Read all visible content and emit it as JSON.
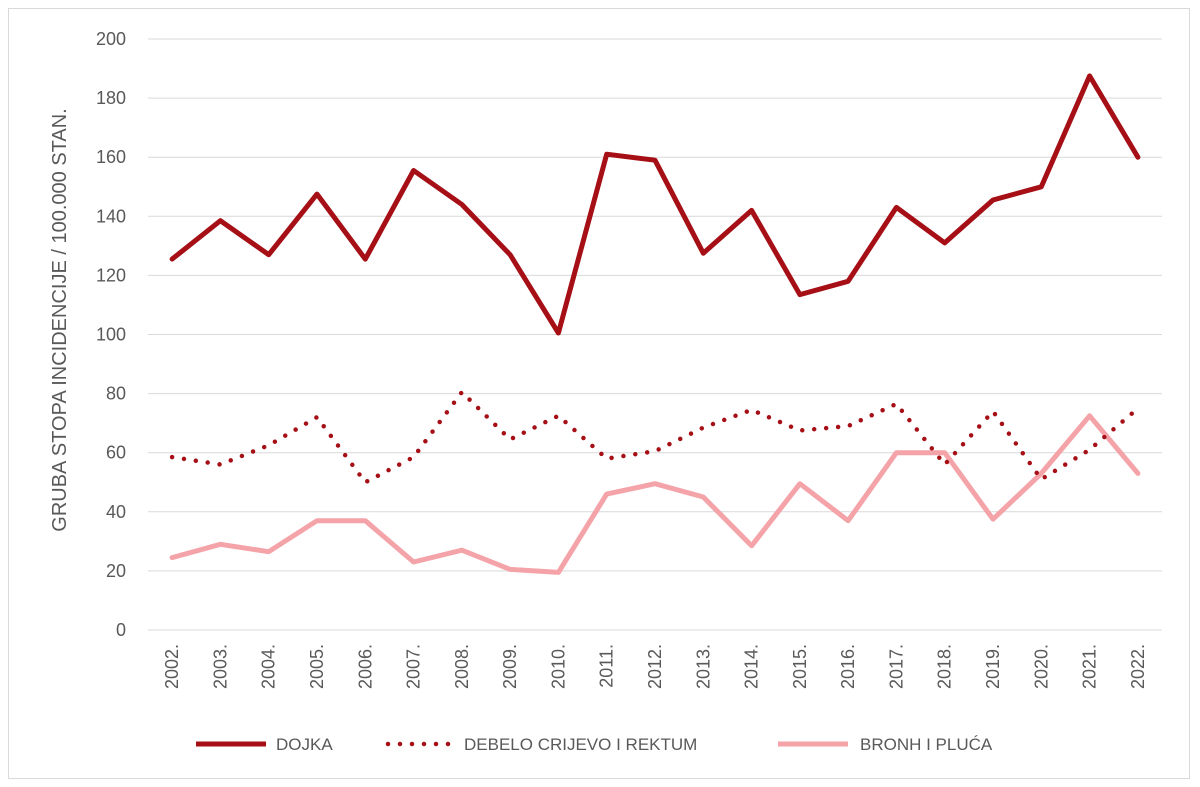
{
  "chart_data": {
    "type": "line",
    "ylabel": "GRUBA STOPA INCIDENCIJE / 100.000 STAN.",
    "xlabel": "",
    "ylim": [
      0,
      200
    ],
    "yticks": [
      "0",
      "20",
      "40",
      "60",
      "80",
      "100",
      "120",
      "140",
      "160",
      "180",
      "200"
    ],
    "grid": true,
    "legend_position": "bottom",
    "categories": [
      "2002.",
      "2003.",
      "2004.",
      "2005.",
      "2006.",
      "2007.",
      "2008.",
      "2009.",
      "2010.",
      "2011.",
      "2012.",
      "2013.",
      "2014.",
      "2015.",
      "2016.",
      "2017.",
      "2018.",
      "2019.",
      "2020.",
      "2021.",
      "2022."
    ],
    "series": [
      {
        "name": "DOJKA",
        "color": "#a50f15",
        "style": "solid",
        "values": [
          125.5,
          138.5,
          127,
          147.5,
          125.5,
          155.5,
          144,
          127,
          100.5,
          161,
          159,
          127.5,
          142,
          113.5,
          118,
          143,
          131,
          145.5,
          150,
          187.5,
          160
        ]
      },
      {
        "name": "DEBELO CRIJEVO I REKTUM",
        "color": "#a50f15",
        "style": "dotted",
        "values": [
          58.5,
          56,
          62.5,
          72,
          50,
          58.5,
          80.5,
          64.5,
          72.5,
          58,
          60.5,
          68.5,
          74.5,
          67.5,
          69,
          76.5,
          56,
          74,
          51,
          61,
          75
        ]
      },
      {
        "name": "BRONH I PLUĆA",
        "color": "#f4a3a8",
        "style": "solid",
        "values": [
          24.5,
          29,
          26.5,
          37,
          37,
          23,
          27,
          20.5,
          19.5,
          46,
          49.5,
          45,
          28.5,
          49.5,
          37,
          60,
          60,
          37.5,
          53,
          72.5,
          53
        ]
      }
    ]
  }
}
